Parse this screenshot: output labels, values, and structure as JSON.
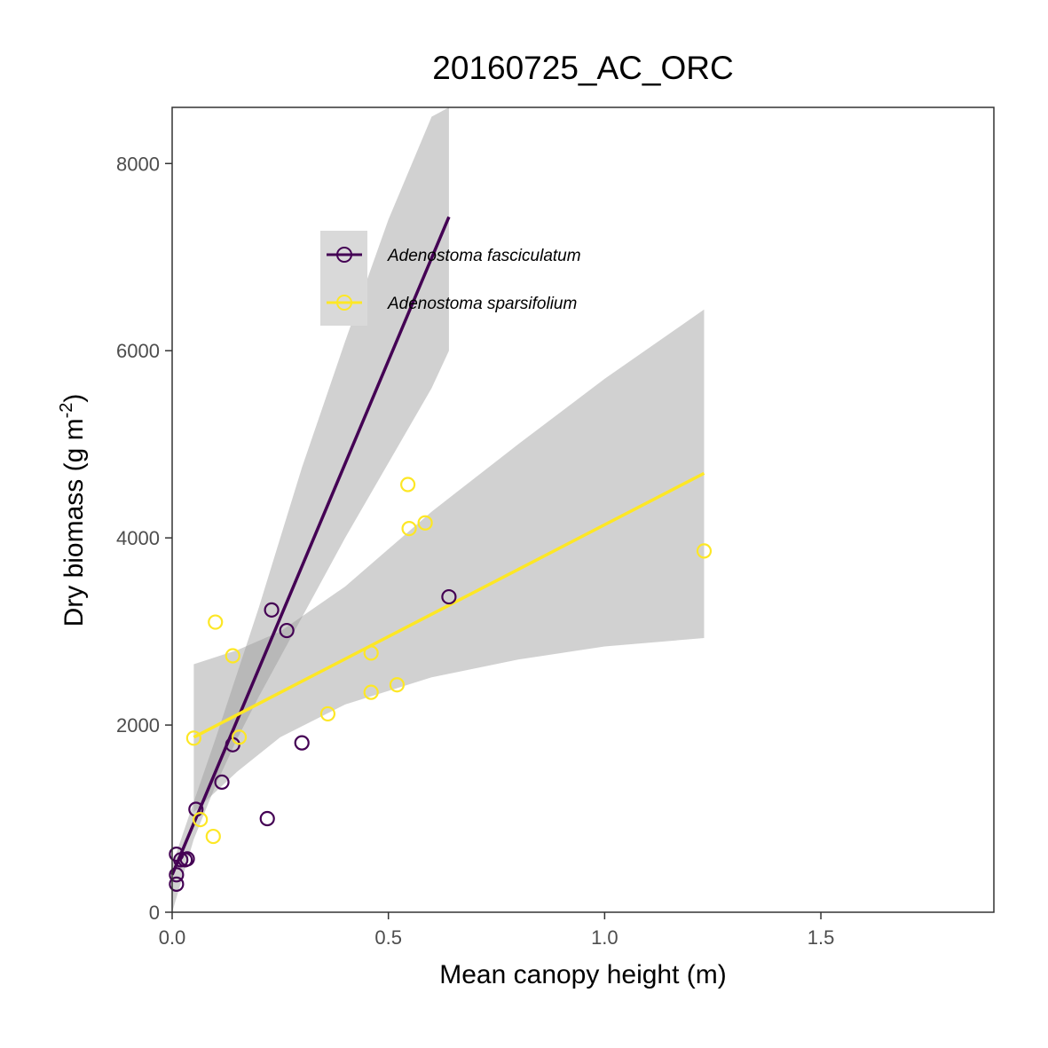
{
  "chart_data": {
    "type": "scatter",
    "title": "20160725_AC_ORC",
    "xlabel": "Mean canopy height (m)",
    "ylabel_main": "Dry biomass (g m",
    "ylabel_sup": "-2",
    "ylabel_end": ")",
    "xlim": [
      0,
      1.9
    ],
    "ylim": [
      0,
      8600
    ],
    "x_ticks": [
      0.0,
      0.5,
      1.0,
      1.5
    ],
    "x_tick_labels": [
      "0.0",
      "0.5",
      "1.0",
      "1.5"
    ],
    "y_ticks": [
      0,
      2000,
      4000,
      6000,
      8000
    ],
    "y_tick_labels": [
      "0",
      "2000",
      "4000",
      "6000",
      "8000"
    ],
    "grid": false,
    "legend_position": "top-left",
    "series": [
      {
        "name": "Adenostoma fasciculatum",
        "color": "#440154",
        "points": [
          [
            0.01,
            620
          ],
          [
            0.01,
            300
          ],
          [
            0.01,
            400
          ],
          [
            0.02,
            560
          ],
          [
            0.03,
            560
          ],
          [
            0.035,
            570
          ],
          [
            0.055,
            1100
          ],
          [
            0.115,
            1390
          ],
          [
            0.14,
            1790
          ],
          [
            0.22,
            1000
          ],
          [
            0.23,
            3230
          ],
          [
            0.265,
            3010
          ],
          [
            0.3,
            1810
          ],
          [
            0.64,
            3370
          ]
        ],
        "fit": {
          "x": [
            0.0,
            0.64
          ],
          "y": [
            400,
            7430
          ]
        },
        "band": {
          "x": [
            0.0,
            0.05,
            0.1,
            0.15,
            0.2,
            0.3,
            0.4,
            0.5,
            0.6,
            0.64
          ],
          "lower": [
            0,
            780,
            1350,
            1850,
            2300,
            3150,
            4000,
            4800,
            5600,
            6000
          ],
          "upper": [
            500,
            1180,
            1850,
            2550,
            3250,
            4750,
            6100,
            7400,
            8500,
            8600
          ]
        }
      },
      {
        "name": "Adenostoma sparsifolium",
        "color": "#fde725",
        "points": [
          [
            0.05,
            1860
          ],
          [
            0.065,
            990
          ],
          [
            0.095,
            810
          ],
          [
            0.1,
            3100
          ],
          [
            0.14,
            2740
          ],
          [
            0.155,
            1870
          ],
          [
            0.36,
            2120
          ],
          [
            0.46,
            2350
          ],
          [
            0.46,
            2770
          ],
          [
            0.52,
            2430
          ],
          [
            0.545,
            4570
          ],
          [
            0.548,
            4100
          ],
          [
            0.585,
            4160
          ],
          [
            1.23,
            3860
          ]
        ],
        "fit": {
          "x": [
            0.05,
            1.23
          ],
          "y": [
            1870,
            4690
          ]
        },
        "band": {
          "x": [
            0.05,
            0.15,
            0.25,
            0.4,
            0.6,
            0.8,
            1.0,
            1.23
          ],
          "lower": [
            1070,
            1500,
            1870,
            2220,
            2510,
            2700,
            2840,
            2930
          ],
          "upper": [
            2650,
            2800,
            3000,
            3480,
            4280,
            5000,
            5700,
            6440
          ]
        }
      }
    ]
  }
}
